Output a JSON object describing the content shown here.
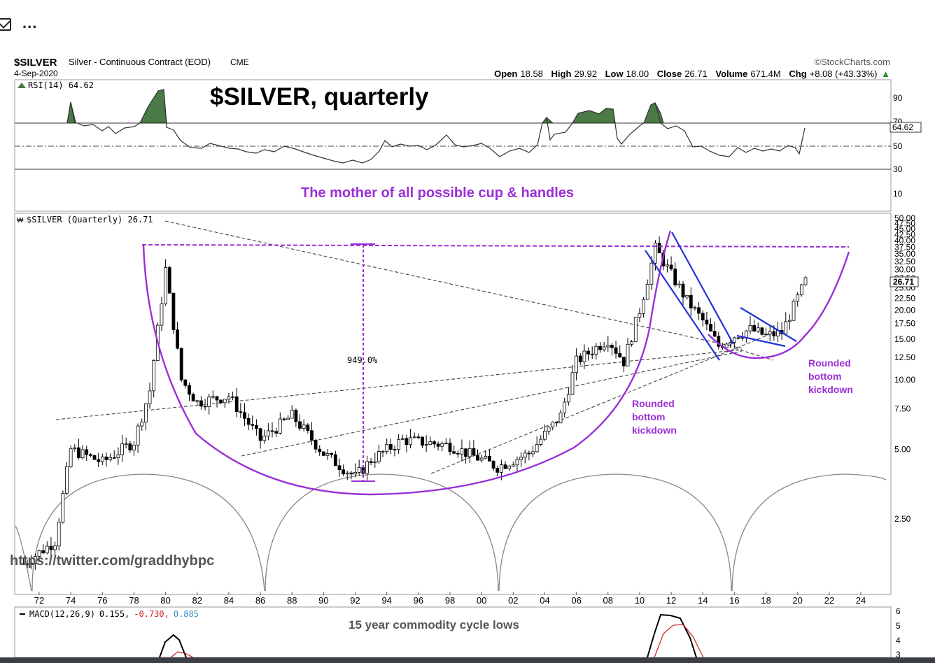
{
  "toolbar": {
    "mail_icon": "mail-icon",
    "more_icon": "more-icon",
    "more_label": "..."
  },
  "header": {
    "symbol": "$SILVER",
    "description": "Silver - Continuous Contract (EOD)",
    "exchange": "CME",
    "date": "4-Sep-2020",
    "watermark": "©StockCharts.com",
    "ohlc": {
      "open_label": "Open",
      "open": "18.58",
      "high_label": "High",
      "high": "29.92",
      "low_label": "Low",
      "low": "18.00",
      "close_label": "Close",
      "close": "26.71",
      "volume_label": "Volume",
      "volume": "671.4M",
      "chg_label": "Chg",
      "chg": "+8.08 (+43.33%)",
      "chg_arrow": "▲"
    }
  },
  "annotations": {
    "big_title": "$SILVER, quarterly",
    "subtitle": "The mother of all possible cup & handles",
    "pct_move": "949.0%",
    "rounded1": [
      "Rounded",
      "bottom",
      "kickdown"
    ],
    "rounded2": [
      "Rounded",
      "bottom",
      "kickdown"
    ],
    "twitter": "https://twitter.com/graddhybpc",
    "cycle_label": "15 year commodity cycle lows",
    "colors": {
      "purple": "#9b2fd6",
      "blue": "#2432d6",
      "candle": "#000000",
      "rsi_fill": "#4a7a45",
      "macd_signal": "#cc2222"
    }
  },
  "rsi_panel": {
    "label": "RSI(14) 64.62",
    "current": "64.62",
    "ticks": [
      "90",
      "70",
      "50",
      "30",
      "10"
    ]
  },
  "macd_panel": {
    "label_prefix": "MACD(12,26,9)",
    "v1": "0.155,",
    "v2": "-0.730,",
    "v3": "0.885",
    "ticks": [
      "6",
      "5",
      "4",
      "3"
    ]
  },
  "chart_data": {
    "type": "line",
    "title": "$SILVER (Quarterly) 26.71",
    "y_scale": "log",
    "ylim": [
      1.5,
      50
    ],
    "y_ticks": [
      "50.00",
      "47.50",
      "45.00",
      "42.50",
      "40.00",
      "37.50",
      "35.00",
      "32.50",
      "30.00",
      "27.50",
      "25.00",
      "22.50",
      "20.00",
      "17.50",
      "15.00",
      "12.50",
      "10.00",
      "7.50",
      "5.00",
      "2.50"
    ],
    "x_ticks": [
      "72",
      "74",
      "76",
      "78",
      "80",
      "82",
      "84",
      "86",
      "88",
      "90",
      "92",
      "94",
      "96",
      "98",
      "00",
      "02",
      "04",
      "06",
      "08",
      "10",
      "12",
      "14",
      "16",
      "18",
      "20",
      "22",
      "24"
    ],
    "last_value": "26.71",
    "series": [
      {
        "x": [
          1971,
          1973,
          1974,
          1976,
          1978,
          1979,
          1980,
          1981,
          1982,
          1984,
          1986,
          1988,
          1990,
          1992,
          1993,
          1995,
          1998,
          2001,
          2003,
          2005,
          2006,
          2008,
          2009,
          2010,
          2011,
          2013,
          2014,
          2015,
          2016,
          2017,
          2018,
          2019,
          2020.5
        ],
        "values": [
          1.6,
          2.0,
          5.0,
          4.4,
          5.4,
          9.0,
          30.0,
          10.0,
          8.0,
          8.5,
          5.5,
          7.0,
          4.8,
          3.8,
          4.5,
          5.5,
          5.2,
          4.2,
          4.8,
          7.0,
          12.0,
          15.0,
          12.0,
          20.0,
          37.0,
          22.0,
          18.0,
          14.0,
          15.5,
          16.5,
          15.5,
          16.0,
          26.71
        ]
      }
    ]
  }
}
